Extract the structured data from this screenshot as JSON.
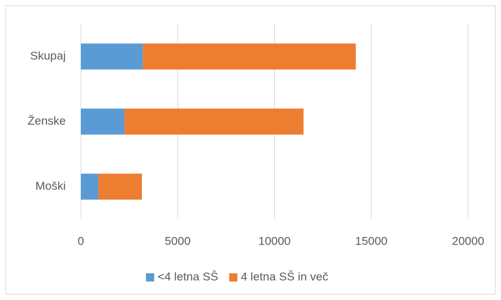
{
  "chart_data": {
    "type": "stacked_hbar",
    "categories": [
      "Skupaj",
      "Ženske",
      "Moški"
    ],
    "series": [
      {
        "name": "<4 letna SŠ",
        "color": "#5b9bd5",
        "values": [
          3200,
          2250,
          900
        ]
      },
      {
        "name": "4 letna SŠ in več",
        "color": "#ed7d31",
        "values": [
          11000,
          9250,
          2250
        ]
      }
    ],
    "xlim": [
      0,
      20000
    ],
    "xticks": [
      0,
      5000,
      10000,
      15000,
      20000
    ],
    "grid": true,
    "legend": "bottom"
  }
}
